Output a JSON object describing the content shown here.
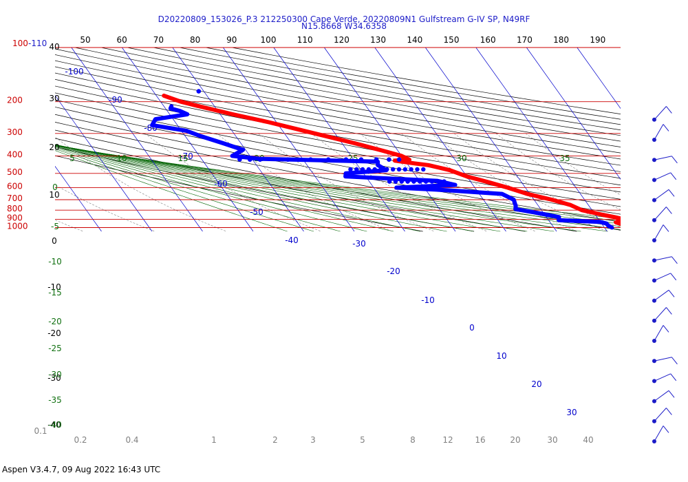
{
  "header": {
    "title_line1": "D20220809_153026_P.3 212250300 Cape Verde, 20220809N1 Gulfstream G-IV SP, N49RF",
    "title_line2": "N15.8668 W34.6358"
  },
  "footer": {
    "text": "Aspen V3.4.7, 09 Aug 2022  16:43 UTC"
  },
  "colors": {
    "temperature": "#ff0000",
    "dewpoint": "#0000ff",
    "isobar": "#cc0000",
    "isotherm": "#0000cc",
    "dry_adiabat": "#000000",
    "moist_adiabat": "#006400",
    "mixing_ratio": "#808080",
    "title": "#1c1cc8"
  },
  "chart_data": {
    "type": "skew-t",
    "pressure_axis_label": "100-110",
    "pressure_levels_hpa": [
      100,
      200,
      300,
      400,
      500,
      600,
      700,
      800,
      900,
      1000
    ],
    "pressure_labels": [
      "100-110",
      "200",
      "300",
      "400",
      "500",
      "600",
      "700",
      "800",
      "900",
      "1000"
    ],
    "top_tick_labels": [
      "50",
      "60",
      "70",
      "80",
      "90",
      "100",
      "110",
      "120",
      "130",
      "140",
      "150",
      "160",
      "170",
      "180",
      "190"
    ],
    "left_black_labels": [
      "40",
      "30",
      "20",
      "10",
      "0",
      "-10",
      "-20",
      "-30",
      "-40"
    ],
    "isotherm_labels": [
      "-100",
      "-90",
      "-80",
      "-70",
      "-60",
      "-50",
      "-40",
      "-30",
      "-20",
      "-10",
      "0",
      "10",
      "20",
      "30"
    ],
    "green_labels_top": [
      "5",
      "10",
      "15",
      "20",
      "25",
      "30",
      "35"
    ],
    "green_labels_left": [
      "0",
      "-5",
      "-10",
      "-15",
      "-20",
      "-25",
      "-30",
      "-35",
      "-40"
    ],
    "mixing_ratio_labels": [
      "0.1",
      "0.2",
      "0.4",
      "1",
      "2",
      "3",
      "5",
      "8",
      "12",
      "16",
      "20",
      "30",
      "40"
    ],
    "temperature_profile": [
      {
        "p": 1000,
        "t": 25.0
      },
      {
        "p": 975,
        "t": 24.5
      },
      {
        "p": 960,
        "t": 24.0
      },
      {
        "p": 935,
        "t": 23.0
      },
      {
        "p": 925,
        "t": 23.5
      },
      {
        "p": 900,
        "t": 25.0
      },
      {
        "p": 875,
        "t": 23.5
      },
      {
        "p": 850,
        "t": 21.5
      },
      {
        "p": 800,
        "t": 18.0
      },
      {
        "p": 750,
        "t": 16.5
      },
      {
        "p": 700,
        "t": 13.5
      },
      {
        "p": 650,
        "t": 9.5
      },
      {
        "p": 600,
        "t": 6.5
      },
      {
        "p": 560,
        "t": 3.5
      },
      {
        "p": 520,
        "t": 0.0
      },
      {
        "p": 480,
        "t": -2.5
      },
      {
        "p": 450,
        "t": -6.0
      },
      {
        "p": 440,
        "t": -8.5
      },
      {
        "p": 425,
        "t": -12.0
      },
      {
        "p": 420,
        "t": -9.0
      },
      {
        "p": 400,
        "t": -10.0
      },
      {
        "p": 370,
        "t": -13.5
      },
      {
        "p": 340,
        "t": -17.5
      },
      {
        "p": 300,
        "t": -24.0
      },
      {
        "p": 260,
        "t": -31.5
      },
      {
        "p": 235,
        "t": -37.5
      },
      {
        "p": 210,
        "t": -43.5
      },
      {
        "p": 200,
        "t": -46.0
      },
      {
        "p": 185,
        "t": -48.5
      }
    ],
    "dewpoint_profile": [
      {
        "p": 1000,
        "t": 21.5
      },
      {
        "p": 975,
        "t": 21.0
      },
      {
        "p": 950,
        "t": 21.0
      },
      {
        "p": 930,
        "t": 20.0
      },
      {
        "p": 910,
        "t": 12.0
      },
      {
        "p": 875,
        "t": 12.5
      },
      {
        "p": 850,
        "t": 10.5
      },
      {
        "p": 820,
        "t": 8.0
      },
      {
        "p": 790,
        "t": 5.0
      },
      {
        "p": 760,
        "t": 5.5
      },
      {
        "p": 700,
        "t": 6.0
      },
      {
        "p": 650,
        "t": 4.5
      },
      {
        "p": 620,
        "t": -6.0
      },
      {
        "p": 600,
        "t": -15.5
      },
      {
        "p": 580,
        "t": -3.5
      },
      {
        "p": 550,
        "t": -6.5
      },
      {
        "p": 520,
        "t": -24.0
      },
      {
        "p": 500,
        "t": -23.5
      },
      {
        "p": 480,
        "t": -15.0
      },
      {
        "p": 450,
        "t": -16.0
      },
      {
        "p": 430,
        "t": -15.5
      },
      {
        "p": 415,
        "t": -38.5
      },
      {
        "p": 400,
        "t": -43.5
      },
      {
        "p": 370,
        "t": -40.5
      },
      {
        "p": 340,
        "t": -43.5
      },
      {
        "p": 310,
        "t": -47.0
      },
      {
        "p": 290,
        "t": -49.0
      },
      {
        "p": 270,
        "t": -55.0
      },
      {
        "p": 250,
        "t": -53.5
      },
      {
        "p": 235,
        "t": -46.5
      },
      {
        "p": 225,
        "t": -47.5
      },
      {
        "p": 218,
        "t": -49.0
      },
      {
        "p": 212,
        "t": -48.5
      }
    ],
    "isolated_points": [
      {
        "p": 418,
        "t": -42.5
      },
      {
        "p": 419,
        "t": -40.5
      },
      {
        "p": 419,
        "t": -38.5
      },
      {
        "p": 419,
        "t": -33.0
      },
      {
        "p": 419,
        "t": -28.5
      },
      {
        "p": 419,
        "t": -25.0
      },
      {
        "p": 419,
        "t": -21.5
      },
      {
        "p": 419,
        "t": -18.5
      },
      {
        "p": 419,
        "t": -15.5
      },
      {
        "p": 419,
        "t": -13.0
      },
      {
        "p": 419,
        "t": -11.0
      },
      {
        "p": 175,
        "t": -41.0
      }
    ],
    "wind_levels_hpa": [
      1000,
      950,
      900,
      850,
      800,
      750,
      700,
      650,
      600,
      550,
      500,
      450,
      400,
      350,
      300,
      250,
      200
    ]
  }
}
